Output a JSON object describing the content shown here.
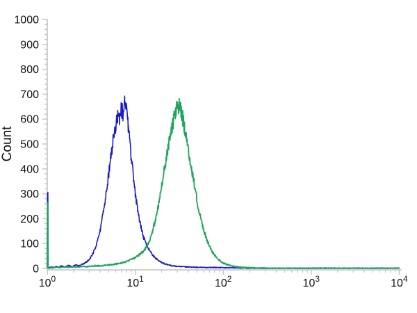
{
  "chart_data": {
    "type": "line",
    "title": "",
    "xlabel": "",
    "ylabel": "Count",
    "x_scale": "log10",
    "xlim_exponents": [
      0,
      4
    ],
    "ylim": [
      0,
      1000
    ],
    "y_major_step": 100,
    "y_minor_step": 20,
    "y_tick_labels": [
      "0",
      "100",
      "200",
      "300",
      "400",
      "500",
      "600",
      "700",
      "800",
      "900",
      "1000"
    ],
    "x_major_ticks": [
      {
        "base": "10",
        "exponent": "0"
      },
      {
        "base": "10",
        "exponent": "1"
      },
      {
        "base": "10",
        "exponent": "2"
      },
      {
        "base": "10",
        "exponent": "3"
      },
      {
        "base": "10",
        "exponent": "4"
      }
    ],
    "x_minor_mantissas": [
      2,
      3,
      4,
      5,
      6,
      7,
      8,
      9
    ],
    "grid": false,
    "legend": "none",
    "colors": {
      "background": "#ffffff",
      "axis": "#c2c2c2",
      "text": "#111111"
    },
    "noise": {
      "base": 1.5,
      "proportional": 0.05
    },
    "series": [
      {
        "name": "blue-histogram",
        "color": "#1b1bc8",
        "stroke_width": 1.6,
        "peak_x_approx": 7,
        "peak_count_approx": 670,
        "origin_spike_count": 305,
        "points_logx_count": [
          [
            0.0,
            2
          ],
          [
            0.003,
            300
          ],
          [
            0.007,
            305
          ],
          [
            0.01,
            2
          ],
          [
            0.05,
            6
          ],
          [
            0.08,
            3
          ],
          [
            0.1,
            9
          ],
          [
            0.13,
            4
          ],
          [
            0.16,
            10
          ],
          [
            0.2,
            6
          ],
          [
            0.24,
            12
          ],
          [
            0.28,
            8
          ],
          [
            0.32,
            14
          ],
          [
            0.36,
            10
          ],
          [
            0.4,
            18
          ],
          [
            0.44,
            24
          ],
          [
            0.48,
            38
          ],
          [
            0.52,
            60
          ],
          [
            0.56,
            95
          ],
          [
            0.6,
            150
          ],
          [
            0.64,
            230
          ],
          [
            0.68,
            330
          ],
          [
            0.72,
            440
          ],
          [
            0.75,
            520
          ],
          [
            0.78,
            575
          ],
          [
            0.8,
            610
          ],
          [
            0.82,
            590
          ],
          [
            0.84,
            645
          ],
          [
            0.86,
            620
          ],
          [
            0.88,
            670
          ],
          [
            0.9,
            640
          ],
          [
            0.92,
            575
          ],
          [
            0.94,
            500
          ],
          [
            0.96,
            430
          ],
          [
            0.98,
            360
          ],
          [
            1.0,
            300
          ],
          [
            1.03,
            230
          ],
          [
            1.06,
            175
          ],
          [
            1.09,
            130
          ],
          [
            1.12,
            100
          ],
          [
            1.15,
            80
          ],
          [
            1.18,
            62
          ],
          [
            1.21,
            48
          ],
          [
            1.24,
            38
          ],
          [
            1.27,
            30
          ],
          [
            1.3,
            24
          ],
          [
            1.34,
            18
          ],
          [
            1.38,
            14
          ],
          [
            1.42,
            11
          ],
          [
            1.46,
            9
          ],
          [
            1.5,
            8
          ],
          [
            1.6,
            6
          ],
          [
            1.7,
            5
          ],
          [
            1.8,
            4
          ],
          [
            1.9,
            4
          ],
          [
            2.0,
            3
          ],
          [
            2.1,
            3
          ],
          [
            2.2,
            2
          ],
          [
            2.3,
            1
          ],
          [
            2.5,
            1
          ],
          [
            3.0,
            1
          ],
          [
            3.5,
            1
          ],
          [
            4.0,
            1
          ]
        ]
      },
      {
        "name": "green-histogram",
        "color": "#21a45e",
        "stroke_width": 1.8,
        "peak_x_approx": 30,
        "peak_count_approx": 660,
        "origin_spike_count": 265,
        "points_logx_count": [
          [
            0.0,
            1
          ],
          [
            0.003,
            260
          ],
          [
            0.007,
            265
          ],
          [
            0.01,
            1
          ],
          [
            0.05,
            3
          ],
          [
            0.1,
            5
          ],
          [
            0.15,
            4
          ],
          [
            0.2,
            6
          ],
          [
            0.25,
            5
          ],
          [
            0.3,
            7
          ],
          [
            0.35,
            6
          ],
          [
            0.4,
            8
          ],
          [
            0.45,
            7
          ],
          [
            0.5,
            9
          ],
          [
            0.55,
            11
          ],
          [
            0.6,
            10
          ],
          [
            0.65,
            13
          ],
          [
            0.7,
            14
          ],
          [
            0.75,
            16
          ],
          [
            0.8,
            19
          ],
          [
            0.85,
            23
          ],
          [
            0.9,
            28
          ],
          [
            0.95,
            35
          ],
          [
            1.0,
            44
          ],
          [
            1.05,
            56
          ],
          [
            1.1,
            72
          ],
          [
            1.14,
            95
          ],
          [
            1.18,
            130
          ],
          [
            1.22,
            180
          ],
          [
            1.26,
            250
          ],
          [
            1.3,
            330
          ],
          [
            1.34,
            420
          ],
          [
            1.38,
            500
          ],
          [
            1.41,
            555
          ],
          [
            1.44,
            600
          ],
          [
            1.46,
            630
          ],
          [
            1.48,
            645
          ],
          [
            1.5,
            660
          ],
          [
            1.52,
            630
          ],
          [
            1.54,
            600
          ],
          [
            1.56,
            565
          ],
          [
            1.58,
            520
          ],
          [
            1.61,
            460
          ],
          [
            1.64,
            400
          ],
          [
            1.67,
            340
          ],
          [
            1.7,
            280
          ],
          [
            1.73,
            225
          ],
          [
            1.76,
            180
          ],
          [
            1.79,
            140
          ],
          [
            1.82,
            110
          ],
          [
            1.85,
            85
          ],
          [
            1.88,
            65
          ],
          [
            1.91,
            50
          ],
          [
            1.94,
            38
          ],
          [
            1.97,
            29
          ],
          [
            2.0,
            22
          ],
          [
            2.04,
            16
          ],
          [
            2.08,
            12
          ],
          [
            2.12,
            9
          ],
          [
            2.16,
            7
          ],
          [
            2.2,
            5
          ],
          [
            2.3,
            3
          ],
          [
            2.4,
            2
          ],
          [
            2.6,
            1
          ],
          [
            3.0,
            1
          ],
          [
            3.5,
            1
          ],
          [
            4.0,
            1
          ]
        ]
      }
    ]
  }
}
